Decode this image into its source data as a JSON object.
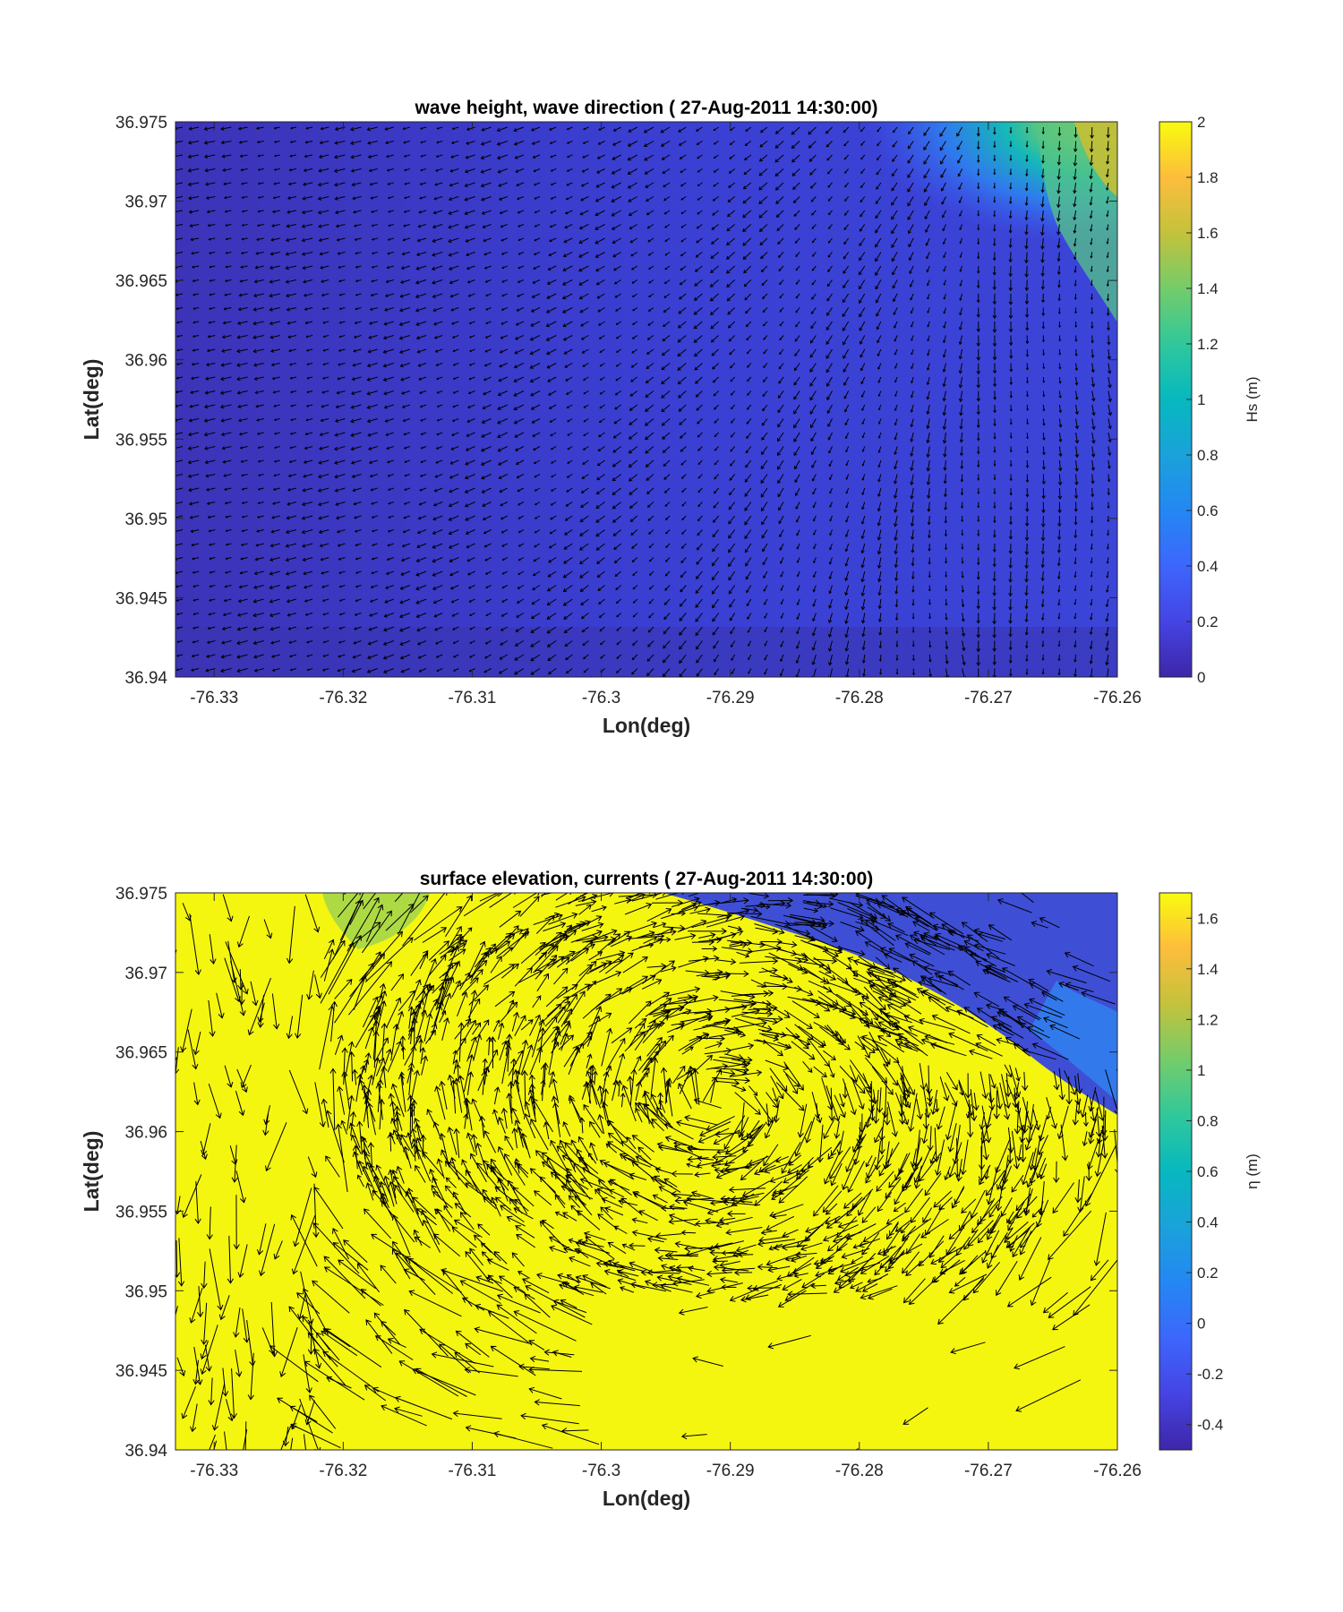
{
  "chart_data": [
    {
      "type": "heatmap",
      "subtype": "quiver-over-colormap",
      "title": "wave height, wave direction ( 27-Aug-2011 14:30:00)",
      "xlabel": "Lon(deg)",
      "ylabel": "Lat(deg)",
      "xlim": [
        -76.333,
        -76.26
      ],
      "ylim": [
        36.94,
        36.975
      ],
      "xticks": [
        -76.33,
        -76.32,
        -76.31,
        -76.3,
        -76.29,
        -76.28,
        -76.27,
        -76.26
      ],
      "xtick_labels": [
        "-76.33",
        "-76.32",
        "-76.31",
        "-76.3",
        "-76.29",
        "-76.28",
        "-76.27",
        "-76.26"
      ],
      "yticks": [
        36.94,
        36.945,
        36.95,
        36.955,
        36.96,
        36.965,
        36.97,
        36.975
      ],
      "ytick_labels": [
        "36.94",
        "36.945",
        "36.95",
        "36.955",
        "36.96",
        "36.965",
        "36.97",
        "36.975"
      ],
      "colorbar": {
        "label": "Hs (m)",
        "clim": [
          0,
          2
        ],
        "ticks": [
          0,
          0.2,
          0.4,
          0.6,
          0.8,
          1,
          1.2,
          1.4,
          1.6,
          1.8,
          2
        ],
        "tick_labels": [
          "0",
          "0.2",
          "0.4",
          "0.6",
          "0.8",
          "1",
          "1.2",
          "1.4",
          "1.6",
          "1.8",
          "2"
        ]
      },
      "colormap": "parula",
      "field_summary": "Hs about 0.1-0.2 m over most of the domain, rising to about 1.2-1.6 m in the north-east corner",
      "vector_summary": "Wave direction arrows flow from the north-east corner toward the west and south-west across the domain, turning southward along the eastern edge"
    },
    {
      "type": "heatmap",
      "subtype": "quiver-over-colormap",
      "title": "surface elevation, currents ( 27-Aug-2011 14:30:00)",
      "xlabel": "Lon(deg)",
      "ylabel": "Lat(deg)",
      "xlim": [
        -76.333,
        -76.26
      ],
      "ylim": [
        36.94,
        36.975
      ],
      "xticks": [
        -76.33,
        -76.32,
        -76.31,
        -76.3,
        -76.29,
        -76.28,
        -76.27,
        -76.26
      ],
      "xtick_labels": [
        "-76.33",
        "-76.32",
        "-76.31",
        "-76.3",
        "-76.29",
        "-76.28",
        "-76.27",
        "-76.26"
      ],
      "yticks": [
        36.94,
        36.945,
        36.95,
        36.955,
        36.96,
        36.965,
        36.97,
        36.975
      ],
      "ytick_labels": [
        "36.94",
        "36.945",
        "36.95",
        "36.955",
        "36.96",
        "36.965",
        "36.97",
        "36.975"
      ],
      "colorbar": {
        "label": "η (m)",
        "clim": [
          -0.5,
          1.7
        ],
        "ticks": [
          -0.4,
          -0.2,
          0,
          0.2,
          0.4,
          0.6,
          0.8,
          1,
          1.2,
          1.4,
          1.6
        ],
        "tick_labels": [
          "-0.4",
          "-0.2",
          "0",
          "0.2",
          "0.4",
          "0.6",
          "0.8",
          "1",
          "1.2",
          "1.4",
          "1.6"
        ]
      },
      "colormap": "parula",
      "field_summary": "Surface elevation saturated near 1.7 m over most of the domain, dropping to about -0.3 to -0.1 m in the north-east corner",
      "vector_summary": "Dense current vectors form a large clockwise swirl centered near lon -76.29, lat 36.962, with long vectors spreading toward the south and south-west"
    }
  ]
}
